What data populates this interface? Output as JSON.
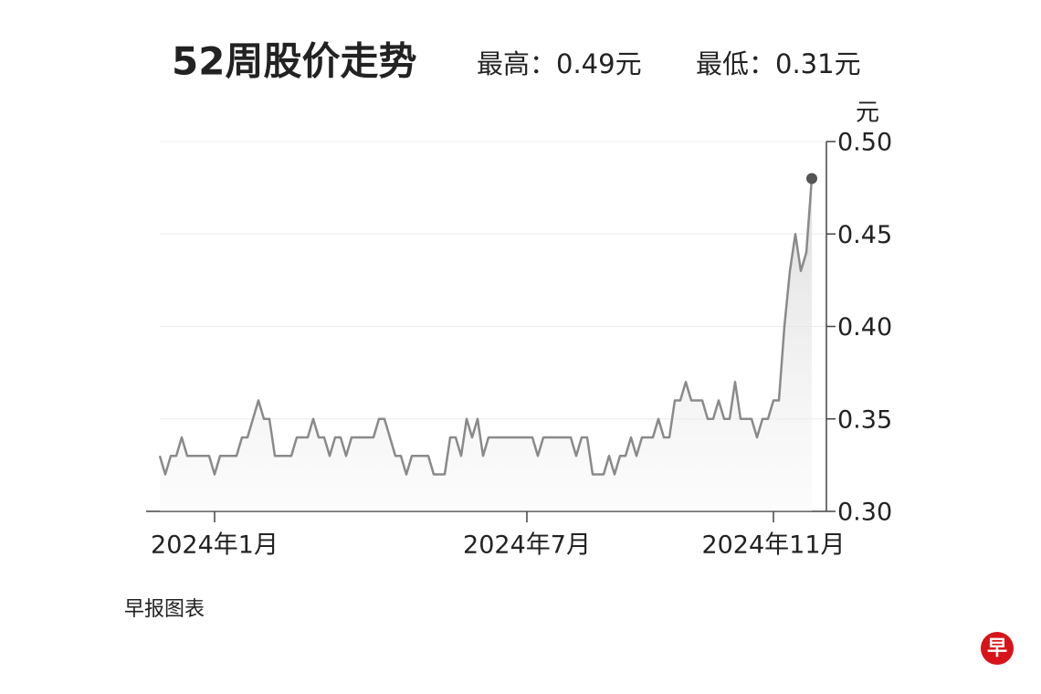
{
  "chart_data": {
    "type": "line",
    "title": "52周股价走势",
    "subtitle_high": "最高：0.49元",
    "subtitle_low": "最低：0.31元",
    "y_label": "元",
    "categories": [
      null,
      null,
      null,
      null,
      null,
      null,
      null,
      null,
      null,
      null,
      "2024年1月",
      null,
      null,
      null,
      null,
      null,
      null,
      null,
      null,
      null,
      null,
      null,
      null,
      null,
      null,
      null,
      null,
      null,
      null,
      null,
      null,
      null,
      null,
      null,
      null,
      null,
      null,
      null,
      null,
      null,
      null,
      null,
      null,
      null,
      null,
      null,
      null,
      null,
      null,
      null,
      null,
      null,
      null,
      null,
      null,
      null,
      null,
      null,
      null,
      null,
      null,
      null,
      null,
      null,
      null,
      null,
      null,
      "2024年7月",
      null,
      null,
      null,
      null,
      null,
      null,
      null,
      null,
      null,
      null,
      null,
      null,
      null,
      null,
      null,
      null,
      null,
      null,
      null,
      null,
      null,
      null,
      null,
      null,
      null,
      null,
      null,
      null,
      null,
      null,
      null,
      null,
      null,
      null,
      null,
      null,
      null,
      null,
      null,
      null,
      null,
      null,
      null,
      null,
      "2024年11月",
      null,
      null,
      null,
      null,
      null,
      null,
      null
    ],
    "series": [
      {
        "color": "#8a8a8a",
        "values": [
          0.33,
          0.32,
          0.33,
          0.33,
          0.34,
          0.33,
          0.33,
          0.33,
          0.33,
          0.33,
          0.32,
          0.33,
          0.33,
          0.33,
          0.33,
          0.34,
          0.34,
          0.35,
          0.36,
          0.35,
          0.35,
          0.33,
          0.33,
          0.33,
          0.33,
          0.34,
          0.34,
          0.34,
          0.35,
          0.34,
          0.34,
          0.33,
          0.34,
          0.34,
          0.33,
          0.34,
          0.34,
          0.34,
          0.34,
          0.34,
          0.35,
          0.35,
          0.34,
          0.33,
          0.33,
          0.32,
          0.33,
          0.33,
          0.33,
          0.33,
          0.32,
          0.32,
          0.32,
          0.34,
          0.34,
          0.33,
          0.35,
          0.34,
          0.35,
          0.33,
          0.34,
          0.34,
          0.34,
          0.34,
          0.34,
          0.34,
          0.34,
          0.34,
          0.34,
          0.33,
          0.34,
          0.34,
          0.34,
          0.34,
          0.34,
          0.34,
          0.33,
          0.34,
          0.34,
          0.32,
          0.32,
          0.32,
          0.33,
          0.32,
          0.33,
          0.33,
          0.34,
          0.33,
          0.34,
          0.34,
          0.34,
          0.35,
          0.34,
          0.34,
          0.36,
          0.36,
          0.37,
          0.36,
          0.36,
          0.36,
          0.35,
          0.35,
          0.36,
          0.35,
          0.35,
          0.37,
          0.35,
          0.35,
          0.35,
          0.34,
          0.35,
          0.35,
          0.36,
          0.36,
          0.4,
          0.43,
          0.45,
          0.43,
          0.44,
          0.48
        ]
      }
    ],
    "ylim": [
      0.3,
      0.5
    ],
    "yticks": [
      {
        "value": 0.3,
        "label": "0.30"
      },
      0.35,
      {
        "value": 0.4,
        "label": "0.40"
      },
      0.45,
      {
        "value": 0.5,
        "label": "0.50"
      }
    ],
    "grid": true,
    "end_marker": true
  },
  "footer": {
    "source": "早报图表",
    "logo": "早"
  }
}
